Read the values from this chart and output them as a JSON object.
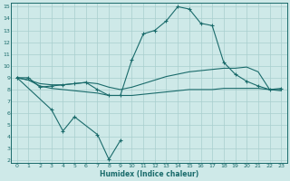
{
  "xlabel": "Humidex (Indice chaleur)",
  "bg_color": "#cee9e8",
  "line_color": "#1a6b6b",
  "grid_color": "#a8cece",
  "ylim": [
    2,
    15
  ],
  "xlim": [
    0,
    23
  ],
  "yticks": [
    2,
    3,
    4,
    5,
    6,
    7,
    8,
    9,
    10,
    11,
    12,
    13,
    14,
    15
  ],
  "xticks": [
    0,
    1,
    2,
    3,
    4,
    5,
    6,
    7,
    8,
    9,
    10,
    11,
    12,
    13,
    14,
    15,
    16,
    17,
    18,
    19,
    20,
    21,
    22,
    23
  ],
  "peak_line_x": [
    0,
    1,
    2,
    3,
    4,
    5,
    6,
    7,
    8,
    9,
    10,
    11,
    12,
    13,
    14,
    15,
    16,
    17,
    18,
    19,
    20,
    21,
    22,
    23
  ],
  "peak_line_y": [
    9.0,
    9.0,
    8.2,
    8.3,
    8.4,
    8.5,
    8.6,
    8.0,
    7.5,
    7.5,
    10.5,
    12.7,
    13.0,
    13.8,
    15.0,
    14.8,
    13.6,
    13.4,
    10.3,
    9.3,
    8.7,
    8.3,
    8.0,
    8.1
  ],
  "upper_flat_x": [
    0,
    1,
    2,
    3,
    4,
    5,
    6,
    7,
    8,
    9,
    10,
    11,
    12,
    13,
    14,
    15,
    16,
    17,
    18,
    19,
    20,
    21,
    22,
    23
  ],
  "upper_flat_y": [
    9.0,
    8.8,
    8.5,
    8.4,
    8.4,
    8.5,
    8.6,
    8.5,
    8.2,
    8.0,
    8.2,
    8.5,
    8.8,
    9.1,
    9.3,
    9.5,
    9.6,
    9.7,
    9.8,
    9.8,
    9.9,
    9.5,
    8.0,
    8.0
  ],
  "lower_flat_x": [
    0,
    1,
    2,
    3,
    4,
    5,
    6,
    7,
    8,
    9,
    10,
    11,
    12,
    13,
    14,
    15,
    16,
    17,
    18,
    19,
    20,
    21,
    22,
    23
  ],
  "lower_flat_y": [
    9.0,
    8.8,
    8.3,
    8.1,
    8.0,
    7.9,
    7.8,
    7.7,
    7.5,
    7.5,
    7.5,
    7.6,
    7.7,
    7.8,
    7.9,
    8.0,
    8.0,
    8.0,
    8.1,
    8.1,
    8.1,
    8.1,
    8.0,
    7.9
  ],
  "dip_line_x": [
    0,
    3,
    4,
    5,
    7,
    8,
    9
  ],
  "dip_line_y": [
    9.0,
    6.3,
    4.5,
    5.7,
    4.2,
    2.1,
    3.7
  ]
}
